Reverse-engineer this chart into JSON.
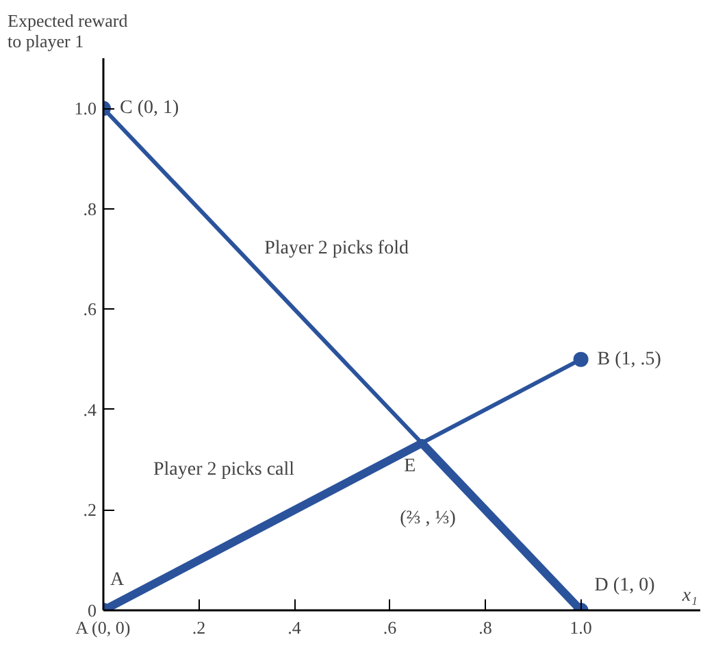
{
  "chart_data": {
    "type": "line",
    "title": "Expected reward\nto player 1",
    "xlabel": "x₁",
    "xlim": [
      0,
      1.25
    ],
    "ylim": [
      0,
      1.1
    ],
    "xticks": [
      {
        "value": 0,
        "label": "A (0, 0)"
      },
      {
        "value": 0.2,
        "label": ".2"
      },
      {
        "value": 0.4,
        "label": ".4"
      },
      {
        "value": 0.6,
        "label": ".6"
      },
      {
        "value": 0.8,
        "label": ".8"
      },
      {
        "value": 1.0,
        "label": "1.0"
      }
    ],
    "yticks": [
      0,
      {
        "value": 0.2,
        "label": ".2"
      },
      {
        "value": 0.4,
        "label": ".4"
      },
      {
        "value": 0.6,
        "label": ".6"
      },
      {
        "value": 0.8,
        "label": ".8"
      },
      {
        "value": 1.0,
        "label": "1.0"
      }
    ],
    "grid": false,
    "series": [
      {
        "color": "#2b539c",
        "x": [
          0,
          1
        ],
        "values": [
          1,
          0
        ],
        "marker": "circle"
      },
      {
        "color": "#2b539c",
        "x": [
          0,
          1
        ],
        "values": [
          0,
          0.5
        ],
        "marker": "circle"
      },
      {
        "color": "#2b539c",
        "x": [
          0,
          0.667,
          1
        ],
        "values": [
          0,
          0.333,
          0
        ],
        "marker": "none"
      }
    ],
    "annotations": [
      {
        "text": "C (0, 1)",
        "x": 0,
        "y": 1
      },
      {
        "text": "Player 2 picks fold",
        "x": 0.32,
        "y": 0.68
      },
      {
        "text": "B (1, .5)",
        "x": 1,
        "y": 0.5
      },
      {
        "text": "Player 2 picks call",
        "x": 0.4,
        "y": 0.2
      },
      {
        "text": "E",
        "x": 0.667,
        "y": 0.333
      },
      "(⅔ , ⅓)",
      {
        "text": "A",
        "x": 0,
        "y": 0
      },
      {
        "text": "D (1, 0)",
        "x": 1,
        "y": 0
      }
    ]
  }
}
